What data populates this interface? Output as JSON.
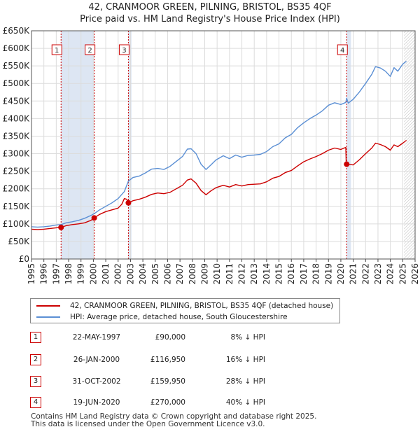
{
  "chart_data": {
    "type": "line",
    "title_line1": "42, CRANMOOR GREEN, PILNING, BRISTOL, BS35 4QF",
    "title_line2": "Price paid vs. HM Land Registry's House Price Index (HPI)",
    "x_ticks": [
      "1995",
      "1996",
      "1997",
      "1998",
      "1999",
      "2000",
      "2001",
      "2002",
      "2003",
      "2004",
      "2005",
      "2006",
      "2007",
      "2008",
      "2009",
      "2010",
      "2011",
      "2012",
      "2013",
      "2014",
      "2015",
      "2016",
      "2017",
      "2018",
      "2019",
      "2020",
      "2021",
      "2022",
      "2023",
      "2024",
      "2025",
      "2026"
    ],
    "y_ticks": [
      "£0",
      "£50K",
      "£100K",
      "£150K",
      "£200K",
      "£250K",
      "£300K",
      "£350K",
      "£400K",
      "£450K",
      "£500K",
      "£550K",
      "£600K",
      "£650K"
    ],
    "xlim": [
      1995,
      2026
    ],
    "ylim": [
      0,
      650000
    ],
    "projection_start": 2025.1,
    "series": [
      {
        "name": "HPI: Average price, detached house, South Gloucestershire",
        "color": "#5b8fd4",
        "points": [
          [
            1995.0,
            92000
          ],
          [
            1995.5,
            91000
          ],
          [
            1996.0,
            92000
          ],
          [
            1996.5,
            94000
          ],
          [
            1997.0,
            97000
          ],
          [
            1997.4,
            98000
          ],
          [
            1997.8,
            103000
          ],
          [
            1998.3,
            106000
          ],
          [
            1998.8,
            110000
          ],
          [
            1999.3,
            116000
          ],
          [
            1999.8,
            124000
          ],
          [
            2000.1,
            130000
          ],
          [
            2000.5,
            140000
          ],
          [
            2001.0,
            150000
          ],
          [
            2001.5,
            160000
          ],
          [
            2002.0,
            172000
          ],
          [
            2002.5,
            192000
          ],
          [
            2002.83,
            222000
          ],
          [
            2003.2,
            232000
          ],
          [
            2003.7,
            236000
          ],
          [
            2004.2,
            245000
          ],
          [
            2004.7,
            256000
          ],
          [
            2005.2,
            258000
          ],
          [
            2005.7,
            255000
          ],
          [
            2006.2,
            264000
          ],
          [
            2006.7,
            278000
          ],
          [
            2007.2,
            292000
          ],
          [
            2007.6,
            313000
          ],
          [
            2007.9,
            314000
          ],
          [
            2008.3,
            300000
          ],
          [
            2008.7,
            270000
          ],
          [
            2009.1,
            255000
          ],
          [
            2009.5,
            268000
          ],
          [
            2009.9,
            282000
          ],
          [
            2010.5,
            294000
          ],
          [
            2011.0,
            286000
          ],
          [
            2011.5,
            296000
          ],
          [
            2012.0,
            290000
          ],
          [
            2012.5,
            295000
          ],
          [
            2013.0,
            296000
          ],
          [
            2013.5,
            298000
          ],
          [
            2014.0,
            306000
          ],
          [
            2014.5,
            320000
          ],
          [
            2015.0,
            328000
          ],
          [
            2015.5,
            345000
          ],
          [
            2016.0,
            355000
          ],
          [
            2016.5,
            374000
          ],
          [
            2017.0,
            388000
          ],
          [
            2017.5,
            400000
          ],
          [
            2018.0,
            410000
          ],
          [
            2018.5,
            422000
          ],
          [
            2019.0,
            438000
          ],
          [
            2019.5,
            445000
          ],
          [
            2020.0,
            440000
          ],
          [
            2020.4,
            446000
          ],
          [
            2020.47,
            458000
          ],
          [
            2020.6,
            444000
          ],
          [
            2021.0,
            455000
          ],
          [
            2021.5,
            476000
          ],
          [
            2022.0,
            500000
          ],
          [
            2022.5,
            526000
          ],
          [
            2022.8,
            548000
          ],
          [
            2023.2,
            544000
          ],
          [
            2023.6,
            535000
          ],
          [
            2024.0,
            520000
          ],
          [
            2024.3,
            545000
          ],
          [
            2024.6,
            535000
          ],
          [
            2025.0,
            555000
          ],
          [
            2025.3,
            563000
          ]
        ]
      },
      {
        "name": "42, CRANMOOR GREEN, PILNING, BRISTOL, BS35 4QF (detached house)",
        "color": "#cc0000",
        "points": [
          [
            1995.0,
            85000
          ],
          [
            1995.5,
            84000
          ],
          [
            1996.0,
            85000
          ],
          [
            1996.5,
            87000
          ],
          [
            1997.0,
            89000
          ],
          [
            1997.39,
            90000
          ],
          [
            1997.8,
            95000
          ],
          [
            1998.3,
            98000
          ],
          [
            1998.8,
            100000
          ],
          [
            1999.3,
            103000
          ],
          [
            1999.8,
            110000
          ],
          [
            2000.07,
            116950
          ],
          [
            2000.5,
            127000
          ],
          [
            2001.0,
            135000
          ],
          [
            2001.5,
            140000
          ],
          [
            2002.0,
            145000
          ],
          [
            2002.3,
            156000
          ],
          [
            2002.5,
            172000
          ],
          [
            2002.7,
            170000
          ],
          [
            2002.83,
            159950
          ],
          [
            2003.2,
            166000
          ],
          [
            2003.7,
            170000
          ],
          [
            2004.2,
            176000
          ],
          [
            2004.7,
            184000
          ],
          [
            2005.2,
            188000
          ],
          [
            2005.7,
            186000
          ],
          [
            2006.2,
            190000
          ],
          [
            2006.7,
            200000
          ],
          [
            2007.2,
            210000
          ],
          [
            2007.6,
            225000
          ],
          [
            2007.9,
            228000
          ],
          [
            2008.3,
            216000
          ],
          [
            2008.7,
            195000
          ],
          [
            2009.1,
            183000
          ],
          [
            2009.5,
            194000
          ],
          [
            2009.9,
            203000
          ],
          [
            2010.5,
            210000
          ],
          [
            2011.0,
            205000
          ],
          [
            2011.5,
            212000
          ],
          [
            2012.0,
            208000
          ],
          [
            2012.5,
            212000
          ],
          [
            2013.0,
            213000
          ],
          [
            2013.5,
            214000
          ],
          [
            2014.0,
            220000
          ],
          [
            2014.5,
            230000
          ],
          [
            2015.0,
            235000
          ],
          [
            2015.5,
            246000
          ],
          [
            2016.0,
            252000
          ],
          [
            2016.5,
            265000
          ],
          [
            2017.0,
            277000
          ],
          [
            2017.5,
            285000
          ],
          [
            2018.0,
            292000
          ],
          [
            2018.5,
            300000
          ],
          [
            2019.0,
            310000
          ],
          [
            2019.5,
            316000
          ],
          [
            2020.0,
            312000
          ],
          [
            2020.4,
            318000
          ],
          [
            2020.44,
            265000
          ],
          [
            2020.47,
            270000
          ],
          [
            2021.0,
            268000
          ],
          [
            2021.5,
            283000
          ],
          [
            2022.0,
            300000
          ],
          [
            2022.5,
            316000
          ],
          [
            2022.8,
            330000
          ],
          [
            2023.2,
            326000
          ],
          [
            2023.6,
            320000
          ],
          [
            2024.0,
            310000
          ],
          [
            2024.3,
            325000
          ],
          [
            2024.6,
            320000
          ],
          [
            2025.0,
            330000
          ],
          [
            2025.3,
            338000
          ]
        ]
      }
    ],
    "sales": [
      {
        "label": "1",
        "x": 1997.39,
        "y": 90000
      },
      {
        "label": "2",
        "x": 2000.07,
        "y": 116950
      },
      {
        "label": "3",
        "x": 2002.83,
        "y": 159950
      },
      {
        "label": "4",
        "x": 2020.47,
        "y": 270000
      }
    ],
    "legend": {
      "property_label": "42, CRANMOOR GREEN, PILNING, BRISTOL, BS35 4QF (detached house)",
      "hpi_label": "HPI: Average price, detached house, South Gloucestershire",
      "property_color": "#cc0000",
      "hpi_color": "#5b8fd4"
    }
  },
  "table": [
    {
      "num": "1",
      "date": "22-MAY-1997",
      "price": "£90,000",
      "hpi": "8% ↓ HPI"
    },
    {
      "num": "2",
      "date": "26-JAN-2000",
      "price": "£116,950",
      "hpi": "16% ↓ HPI"
    },
    {
      "num": "3",
      "date": "31-OCT-2002",
      "price": "£159,950",
      "hpi": "28% ↓ HPI"
    },
    {
      "num": "4",
      "date": "19-JUN-2020",
      "price": "£270,000",
      "hpi": "40% ↓ HPI"
    }
  ],
  "footer": {
    "line1": "Contains HM Land Registry data © Crown copyright and database right 2025.",
    "line2": "This data is licensed under the Open Government Licence v3.0."
  },
  "colors": {
    "shade": "#dde6f3",
    "grid": "#dcdcdc",
    "sale_line": "#cc0000"
  }
}
